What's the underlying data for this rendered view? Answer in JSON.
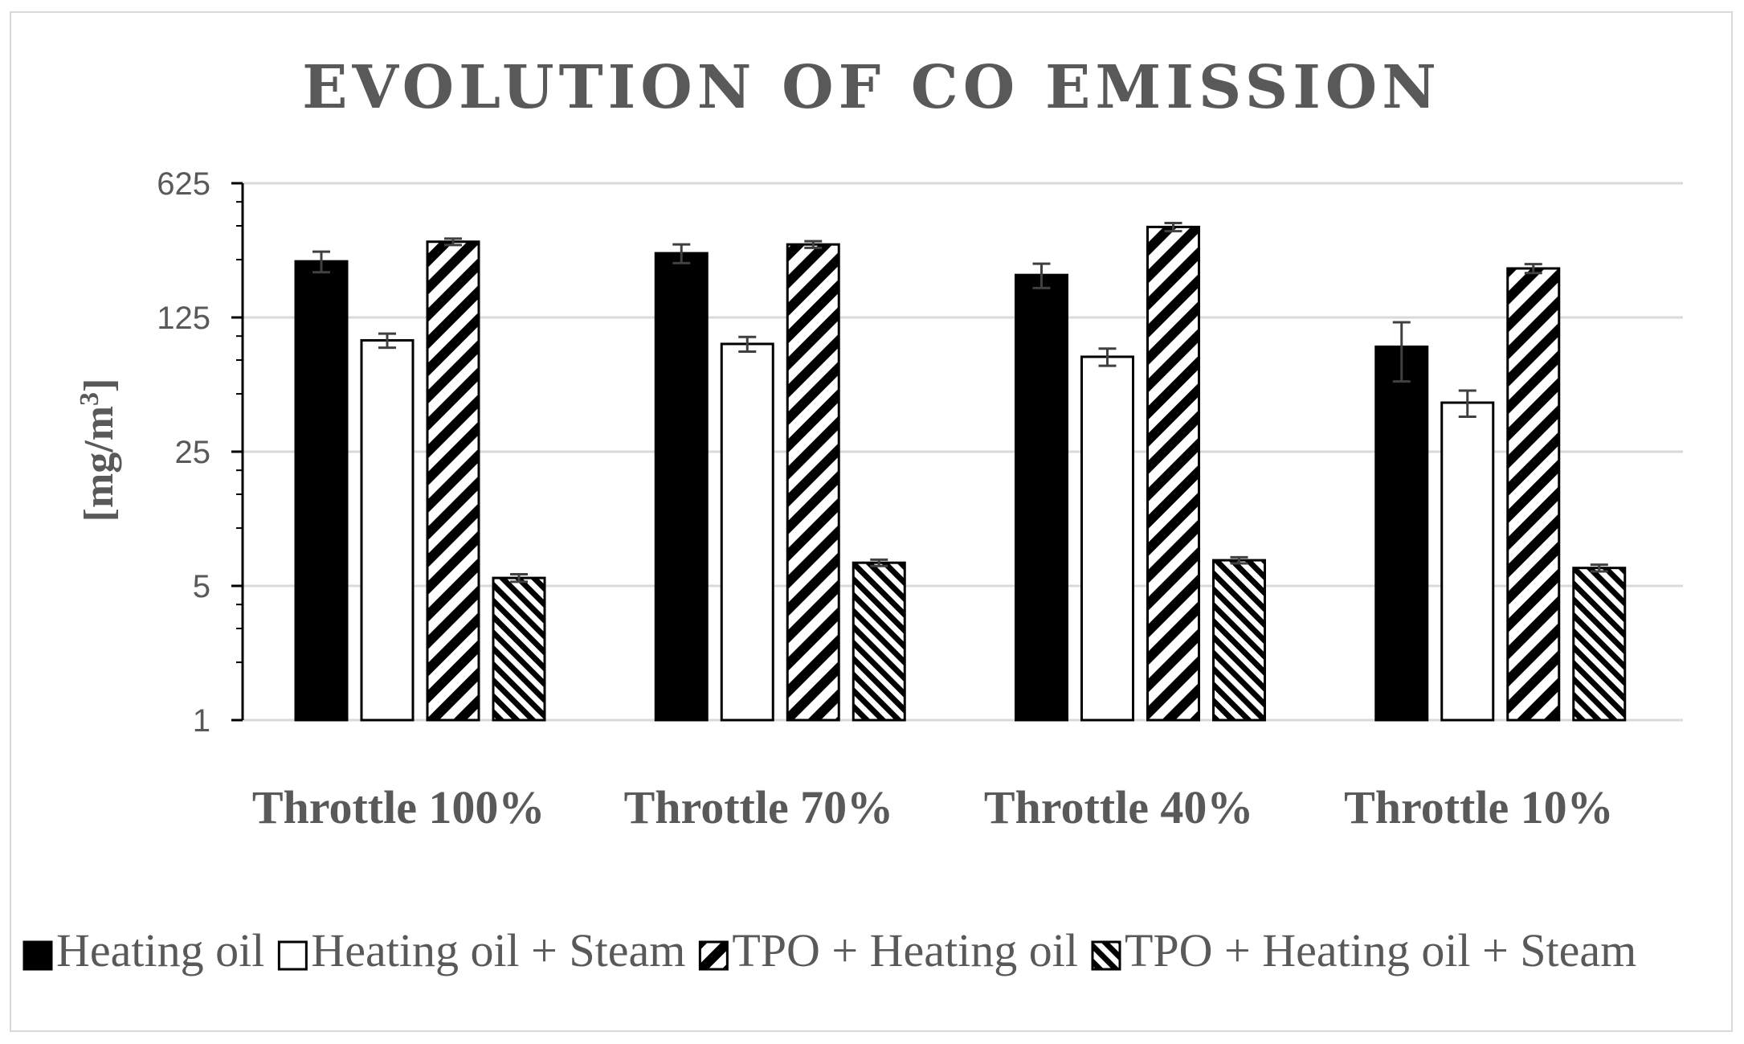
{
  "chart_data": {
    "type": "bar",
    "title": "EVOLUTION  OF CO EMISSION",
    "xlabel": "",
    "ylabel": "[mg/m3]",
    "ylabel_parts": {
      "base": "[mg/m",
      "sup": "3",
      "end": "]"
    },
    "yscale": "log",
    "ylim": [
      1,
      625
    ],
    "yticks": [
      1,
      5,
      25,
      125,
      625
    ],
    "ytick_labels": [
      "1",
      "5",
      "25",
      "125",
      "625"
    ],
    "grid": true,
    "legend_position": "bottom",
    "categories": [
      "Throttle 100%",
      "Throttle 70%",
      "Throttle 40%",
      "Throttle 10%"
    ],
    "series": [
      {
        "name": "Heating oil",
        "pattern": "solid",
        "values": [
          245,
          270,
          208,
          88
        ],
        "errors": [
          30,
          30,
          30,
          30
        ]
      },
      {
        "name": "Heating oil + Steam",
        "pattern": "white",
        "values": [
          95,
          91,
          78,
          45
        ],
        "errors": [
          8,
          8,
          8,
          7
        ]
      },
      {
        "name": "TPO + Heating oil",
        "pattern": "diag-forward",
        "values": [
          310,
          300,
          370,
          225
        ],
        "errors": [
          12,
          12,
          18,
          12
        ]
      },
      {
        "name": "TPO + Heating oil + Steam",
        "pattern": "diag-back",
        "values": [
          5.5,
          6.6,
          6.8,
          6.2
        ],
        "errors": [
          0.25,
          0.25,
          0.25,
          0.25
        ]
      }
    ],
    "colors": {
      "text": "#595959",
      "axis": "#000000",
      "grid": "#d9d9d9",
      "bar": "#000000",
      "error": "#404040"
    }
  }
}
